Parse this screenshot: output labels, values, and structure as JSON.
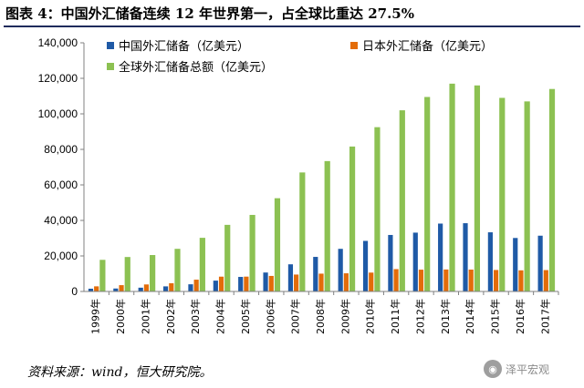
{
  "title": "图表 4：中国外汇储备连续 12 年世界第一，占全球比重达 27.5%",
  "source": "资料来源：wind，恒大研究院。",
  "watermark": {
    "text": "泽平宏观",
    "icon": "wechat-logo-icon"
  },
  "colors": {
    "china": "#1f5aa6",
    "japan": "#e36c09",
    "global": "#8cc152",
    "axis": "#808080",
    "rule": "#1f2b5c"
  },
  "chart_data": {
    "type": "bar",
    "title": "",
    "xlabel": "",
    "ylabel": "",
    "ylim": [
      0,
      140000
    ],
    "yticks": [
      0,
      20000,
      40000,
      60000,
      80000,
      100000,
      120000,
      140000
    ],
    "ytick_labels": [
      "0",
      "20,000",
      "40,000",
      "60,000",
      "80,000",
      "100,000",
      "120,000",
      "140,000"
    ],
    "legend_position": "top",
    "categories": [
      "1999年",
      "2000年",
      "2001年",
      "2002年",
      "2003年",
      "2004年",
      "2005年",
      "2006年",
      "2007年",
      "2008年",
      "2009年",
      "2010年",
      "2011年",
      "2012年",
      "2013年",
      "2014年",
      "2015年",
      "2016年",
      "2017年"
    ],
    "series": [
      {
        "name": "中国外汇储备（亿美元）",
        "key": "china",
        "values": [
          1547,
          1656,
          2122,
          2864,
          4033,
          6099,
          8189,
          10663,
          15282,
          19460,
          23992,
          28473,
          31812,
          33116,
          38213,
          38430,
          33304,
          30105,
          31399
        ]
      },
      {
        "name": "日本外汇储备（亿美元）",
        "key": "japan",
        "values": [
          2880,
          3550,
          3950,
          4610,
          6640,
          8340,
          8350,
          8750,
          9520,
          10030,
          10220,
          10620,
          12580,
          12270,
          12370,
          12310,
          12090,
          11890,
          12030
        ]
      },
      {
        "name": "全球外汇储备总额（亿美元）",
        "key": "global",
        "values": [
          17800,
          19400,
          20500,
          24000,
          30200,
          37500,
          43100,
          52500,
          67000,
          73400,
          81600,
          92500,
          102000,
          109500,
          117000,
          116000,
          109000,
          107000,
          114000
        ]
      }
    ]
  }
}
